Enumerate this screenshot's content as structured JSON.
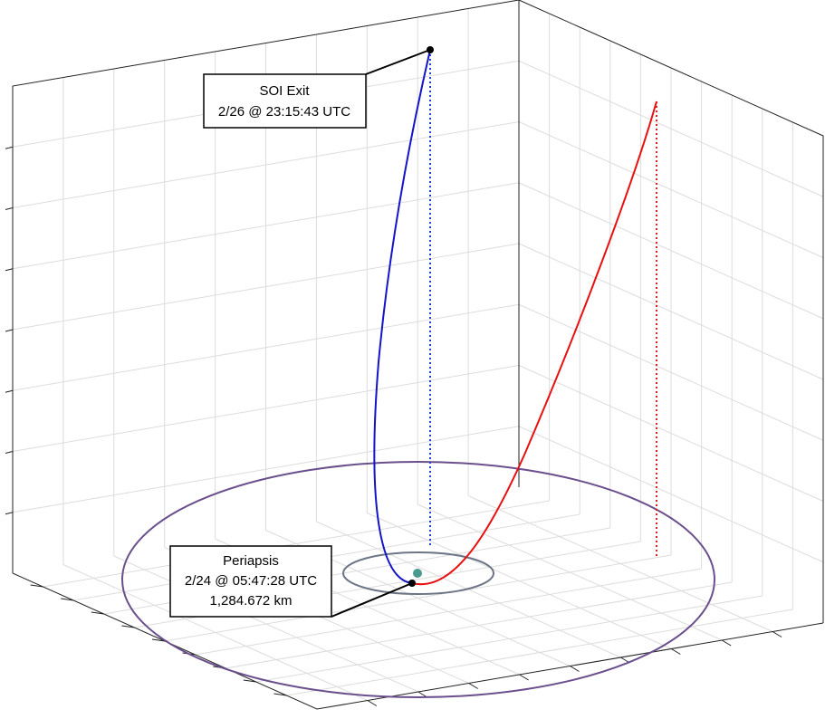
{
  "annotations": [
    {
      "lines": [
        "SOI Exit",
        "2/26 @ 23:15:43 UTC"
      ]
    },
    {
      "lines": [
        "Periapsis",
        "2/24 @ 05:47:28 UTC",
        "1,284.672 km"
      ]
    }
  ]
}
